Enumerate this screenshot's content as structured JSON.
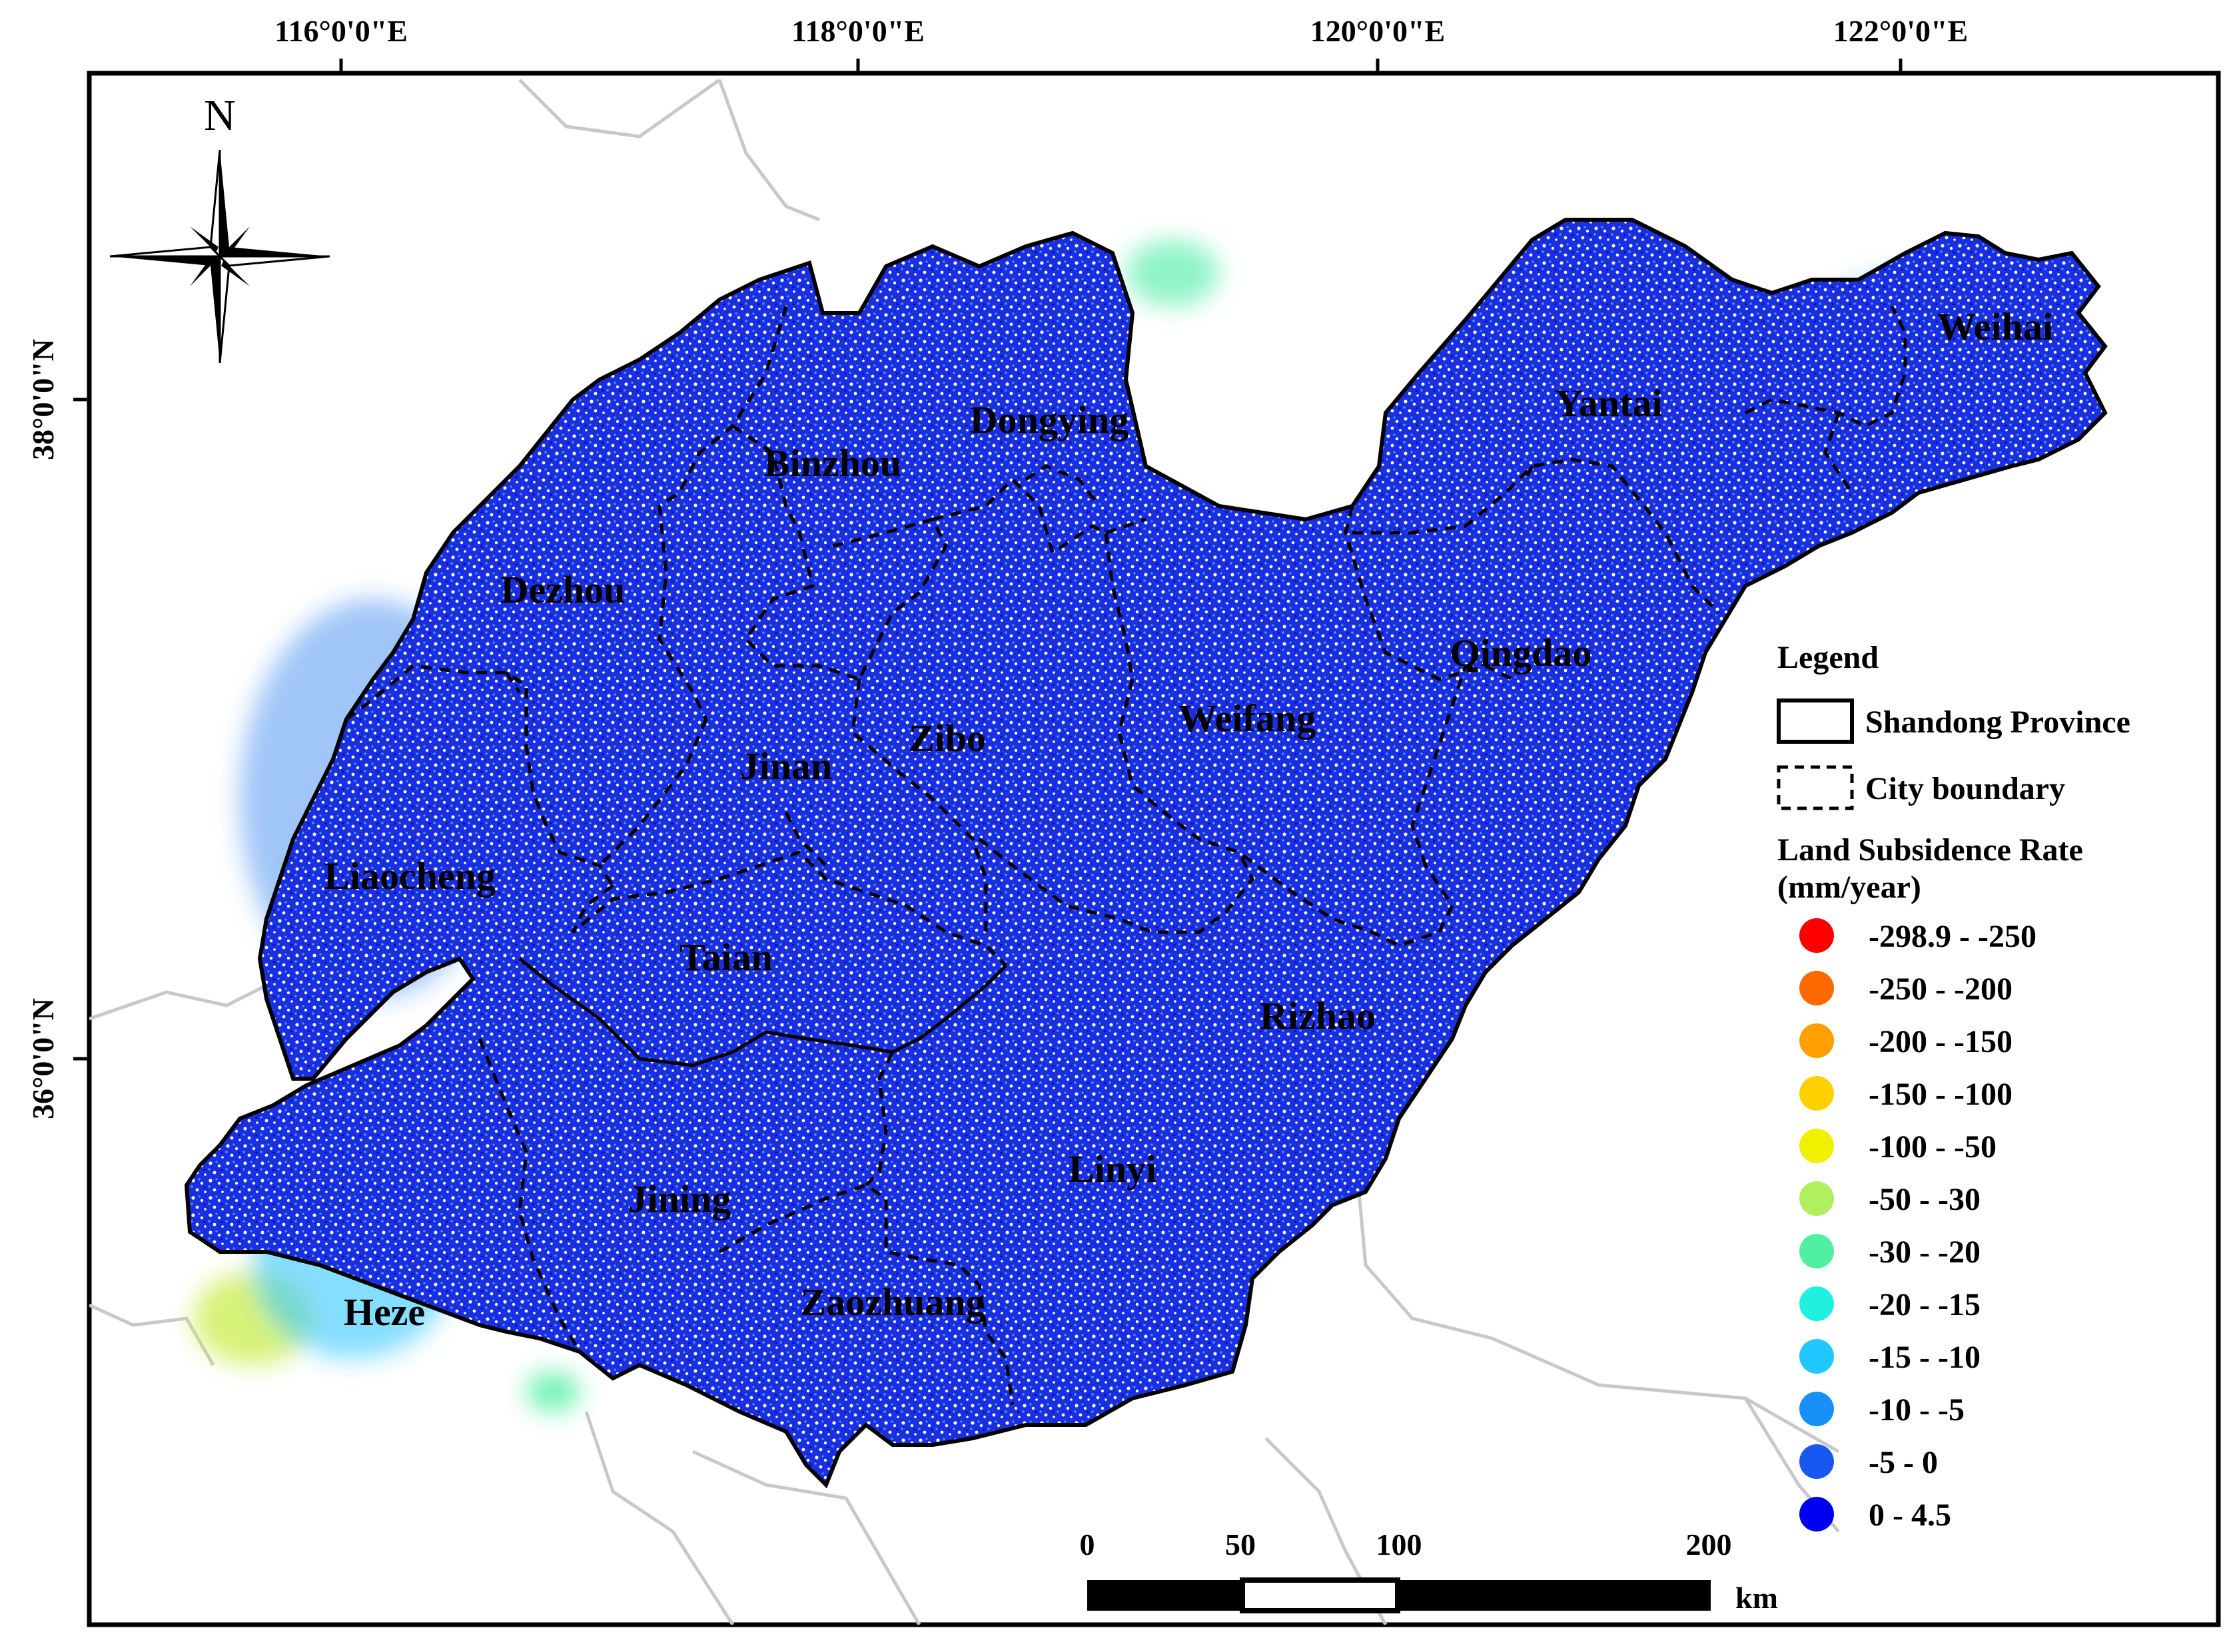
{
  "longitude_labels": [
    "116°0'0\"E",
    "118°0'0\"E",
    "120°0'0\"E",
    "122°0'0\"E"
  ],
  "latitude_labels": [
    "38°0'0\"N",
    "36°0'0\"N"
  ],
  "north_label": "N",
  "cities": [
    {
      "name": "Dongying"
    },
    {
      "name": "Binzhou"
    },
    {
      "name": "Yantai"
    },
    {
      "name": "Weihai"
    },
    {
      "name": "Dezhou"
    },
    {
      "name": "Qingdao"
    },
    {
      "name": "Zibo"
    },
    {
      "name": "Weifang"
    },
    {
      "name": "Jinan"
    },
    {
      "name": "Liaocheng"
    },
    {
      "name": "Taian"
    },
    {
      "name": "Rizhao"
    },
    {
      "name": "Linyi"
    },
    {
      "name": "Jining"
    },
    {
      "name": "Heze"
    },
    {
      "name": "Zaozhuang"
    }
  ],
  "legend": {
    "title": "Legend",
    "province_label": "Shandong Province",
    "city_boundary_label": "City boundary",
    "rate_title_line1": "Land Subsidence Rate",
    "rate_title_line2": "(mm/year)",
    "classes": [
      {
        "label": "-298.9 - -250",
        "color": "#ff0000"
      },
      {
        "label": "-250 - -200",
        "color": "#ff6a00"
      },
      {
        "label": "-200 - -150",
        "color": "#ffa000"
      },
      {
        "label": "-150 - -100",
        "color": "#ffd000"
      },
      {
        "label": "-100 - -50",
        "color": "#f0f000"
      },
      {
        "label": "-50 - -30",
        "color": "#b0f060"
      },
      {
        "label": "-30 - -20",
        "color": "#50f0a0"
      },
      {
        "label": "-20 - -15",
        "color": "#20f0e0"
      },
      {
        "label": "-15 - -10",
        "color": "#20c8ff"
      },
      {
        "label": "-10 - -5",
        "color": "#1890f8"
      },
      {
        "label": "-5 - 0",
        "color": "#1858f0"
      },
      {
        "label": "0 - 4.5",
        "color": "#0000f0"
      }
    ]
  },
  "scale_bar": {
    "ticks": [
      "0",
      "50",
      "100",
      "200"
    ],
    "unit": "km"
  }
}
